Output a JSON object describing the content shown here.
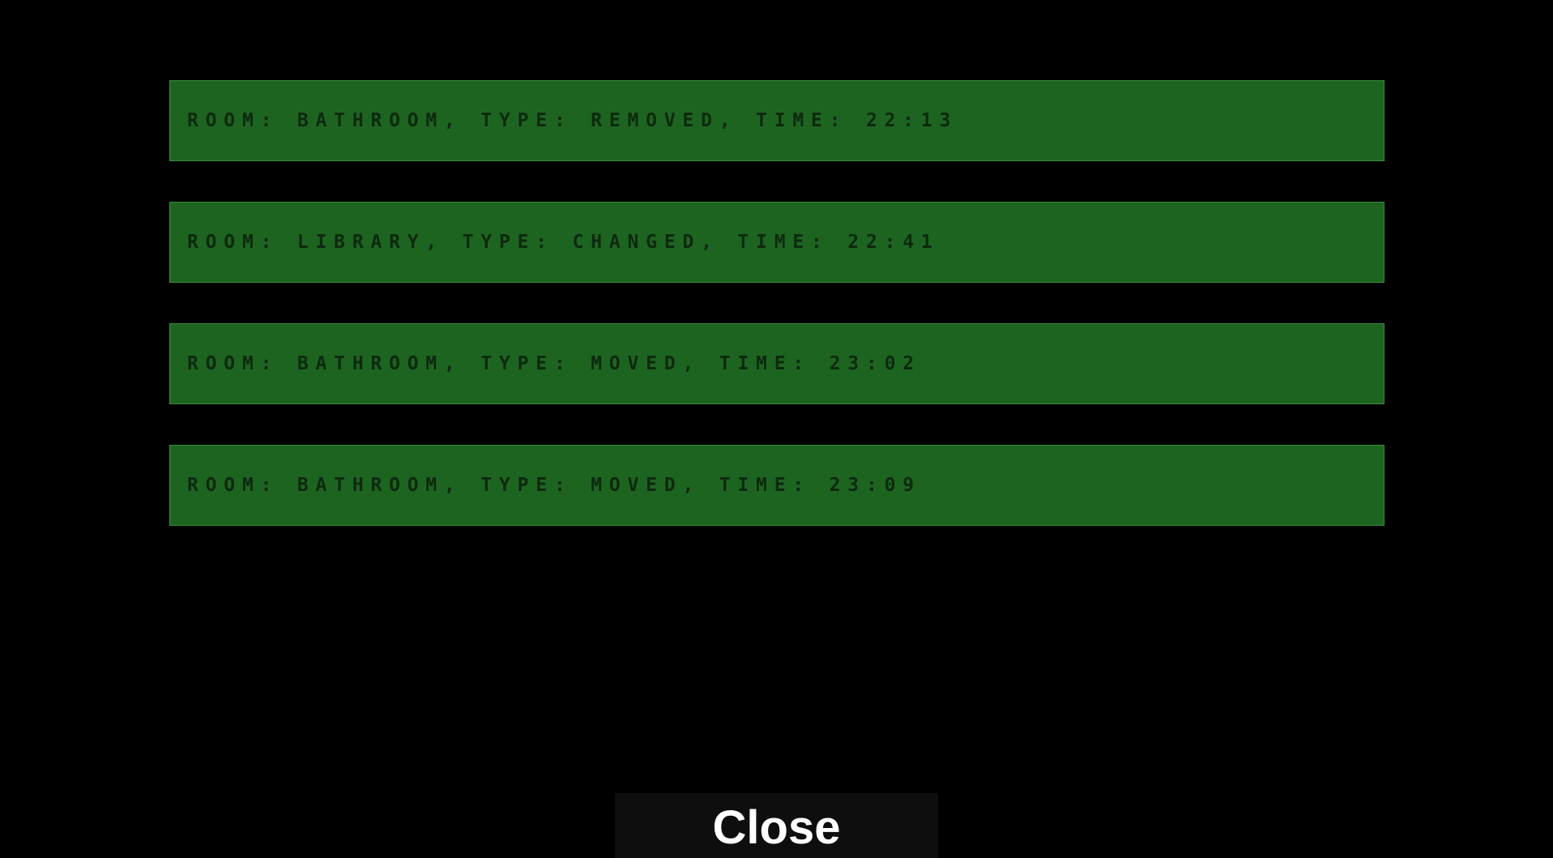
{
  "log_entries": [
    {
      "text": "ROOM: BATHROOM, TYPE: REMOVED, TIME: 22:13"
    },
    {
      "text": "ROOM: LIBRARY, TYPE: CHANGED, TIME: 22:41"
    },
    {
      "text": "ROOM: BATHROOM, TYPE: MOVED, TIME: 23:02"
    },
    {
      "text": "ROOM: BATHROOM, TYPE: MOVED, TIME: 23:09"
    }
  ],
  "close_label": "Close",
  "colors": {
    "background": "#000000",
    "entry_background": "#1e6421",
    "entry_text": "#0d2a0e",
    "button_background": "#0e0e0e",
    "button_text": "#ffffff"
  }
}
